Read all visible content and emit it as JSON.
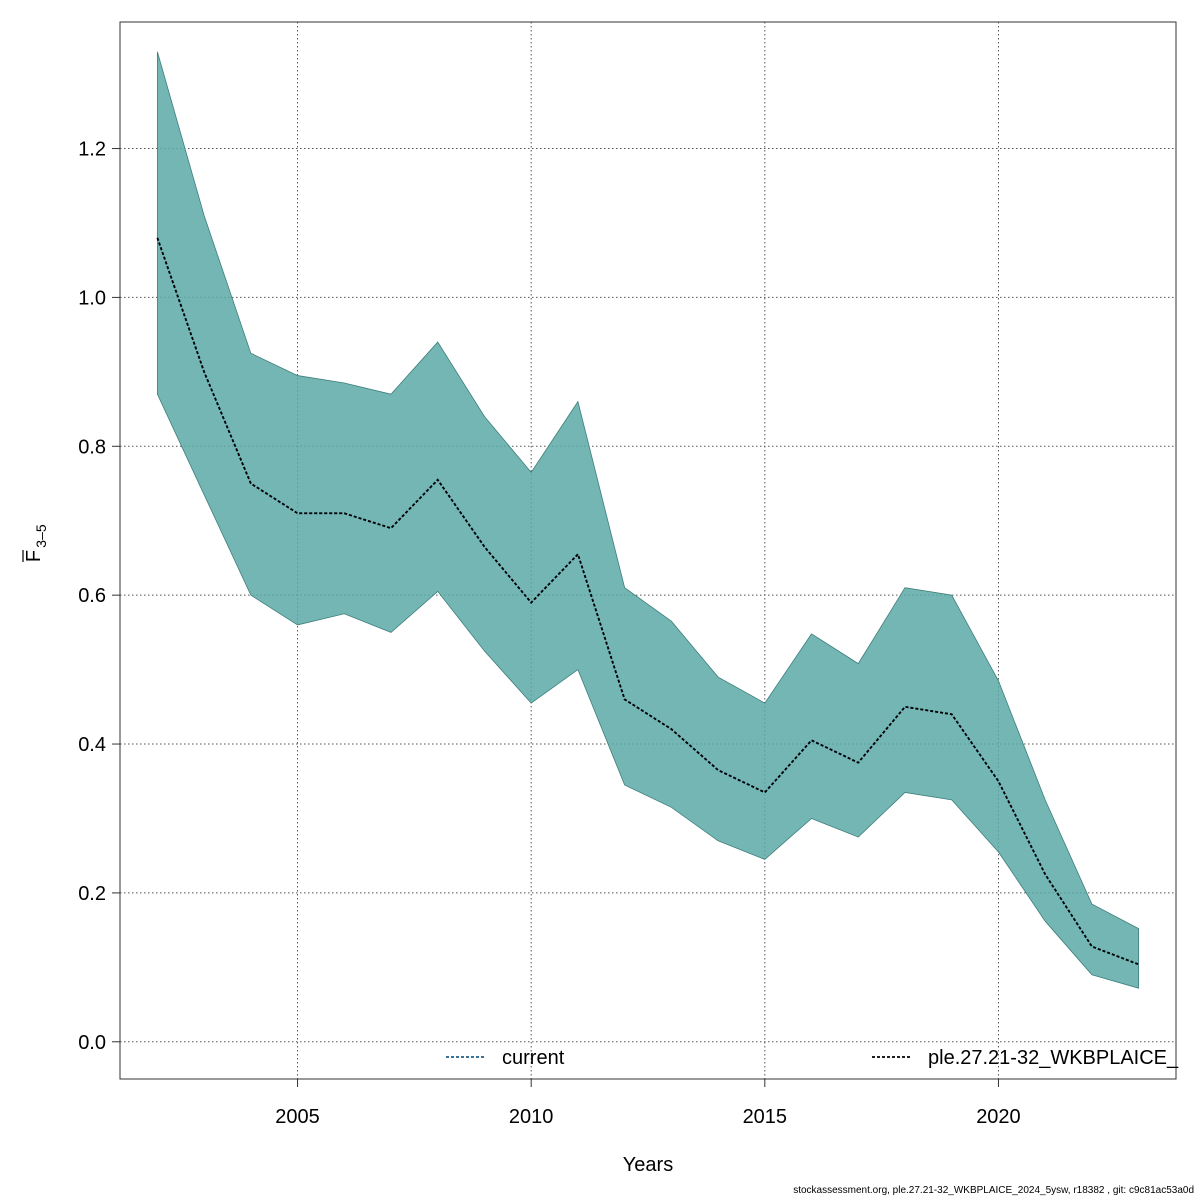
{
  "chart_data": {
    "type": "area",
    "xlabel": "Years",
    "ylabel_main": "F",
    "ylabel_sub": "3–5",
    "xlim": [
      2001.2,
      2023.8
    ],
    "ylim": [
      -0.05,
      1.37
    ],
    "x_ticks": [
      2005,
      2010,
      2015,
      2020
    ],
    "y_ticks": [
      0.0,
      0.2,
      0.4,
      0.6,
      0.8,
      1.0,
      1.2
    ],
    "grid": true,
    "x": [
      2002,
      2003,
      2004,
      2005,
      2006,
      2007,
      2008,
      2009,
      2010,
      2011,
      2012,
      2013,
      2014,
      2015,
      2016,
      2017,
      2018,
      2019,
      2020,
      2021,
      2022,
      2023
    ],
    "series": [
      {
        "name": "current",
        "line_color": "#1f5e8c",
        "values": [
          1.08,
          0.9,
          0.75,
          0.71,
          0.71,
          0.69,
          0.755,
          0.665,
          0.59,
          0.655,
          0.46,
          0.42,
          0.365,
          0.335,
          0.405,
          0.375,
          0.45,
          0.44,
          0.35,
          0.225,
          0.128,
          0.104
        ]
      },
      {
        "name": "ple.27.21-32_WKBPLAICE_",
        "line_color": "#000000",
        "fill_color": "#5aa9a6",
        "values": [
          1.08,
          0.9,
          0.75,
          0.71,
          0.71,
          0.69,
          0.755,
          0.665,
          0.59,
          0.655,
          0.46,
          0.42,
          0.365,
          0.335,
          0.405,
          0.375,
          0.45,
          0.44,
          0.35,
          0.225,
          0.128,
          0.104
        ],
        "lower": [
          0.87,
          0.735,
          0.6,
          0.56,
          0.575,
          0.55,
          0.605,
          0.525,
          0.455,
          0.5,
          0.345,
          0.315,
          0.27,
          0.245,
          0.3,
          0.275,
          0.335,
          0.325,
          0.255,
          0.162,
          0.09,
          0.072
        ],
        "upper": [
          1.33,
          1.11,
          0.925,
          0.895,
          0.885,
          0.87,
          0.94,
          0.84,
          0.765,
          0.86,
          0.61,
          0.565,
          0.49,
          0.455,
          0.548,
          0.508,
          0.61,
          0.6,
          0.485,
          0.325,
          0.185,
          0.152
        ]
      }
    ],
    "legend_position": "bottom",
    "footer": "stockassessment.org, ple.27.21-32_WKBPLAICE_2024_5ysw, r18382 , git: c9c81ac53a0d"
  }
}
